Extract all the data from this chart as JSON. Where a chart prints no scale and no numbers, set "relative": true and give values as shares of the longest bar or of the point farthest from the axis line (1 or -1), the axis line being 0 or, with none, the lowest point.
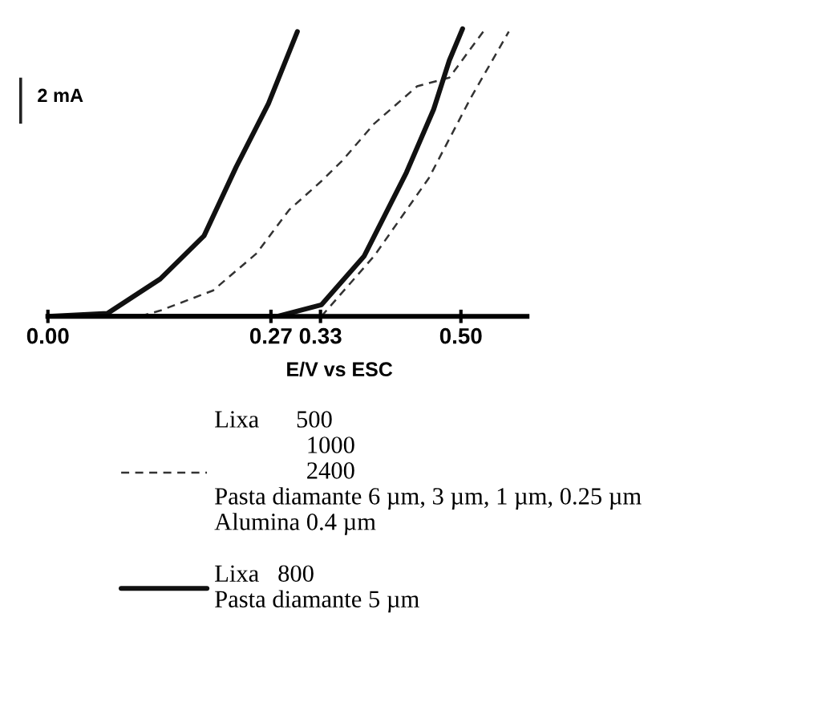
{
  "chart_data": {
    "type": "line",
    "relative": true,
    "xlabel": "E/V vs ESC",
    "xlim": [
      0,
      0.58
    ],
    "xticks": [
      {
        "value": 0,
        "label": "0.00"
      },
      {
        "value": 0.27,
        "label": "0.27"
      },
      {
        "value": 0.33,
        "label": "0.33"
      },
      {
        "value": 0.5,
        "label": "0.50"
      }
    ],
    "grid": false,
    "legend": "bottom",
    "marker": "none",
    "annotations": [
      "2 mA"
    ],
    "series": [
      {
        "name": "Lixa      500\n               1000\n               2400\nPasta diamante 6 µm, 3 µm, 1 µm, 0.25 µm\nAlumina 0.4 µm",
        "color": "#333333",
        "line_style": "dashed",
        "x": [
          0.331,
          0.395,
          0.461,
          0.512,
          0.558
        ],
        "values": [
          0,
          0.21,
          0.48,
          0.76,
          0.99
        ]
      },
      {
        "color": "#333333",
        "line_style": "dashed",
        "x": [
          0.527,
          0.486,
          0.447,
          0.395,
          0.356,
          0.331,
          0.292,
          0.253,
          0.2,
          0.136,
          0.111
        ],
        "values": [
          0.99,
          0.83,
          0.8,
          0.67,
          0.54,
          0.47,
          0.37,
          0.22,
          0.09,
          0.02,
          0
        ]
      },
      {
        "name": "Lixa   800\nPasta diamante 5 µm",
        "color": "#111111",
        "line_style": "solid",
        "x": [
          0,
          0.278,
          0.331,
          0.383,
          0.434,
          0.467,
          0.486,
          0.502
        ],
        "values": [
          0,
          0,
          0.04,
          0.21,
          0.5,
          0.72,
          0.89,
          1.0
        ]
      },
      {
        "color": "#111111",
        "line_style": "solid",
        "x": [
          0.302,
          0.267,
          0.228,
          0.189,
          0.136,
          0.072,
          0
        ],
        "values": [
          0.99,
          0.74,
          0.52,
          0.28,
          0.13,
          0.01,
          0
        ]
      }
    ]
  }
}
